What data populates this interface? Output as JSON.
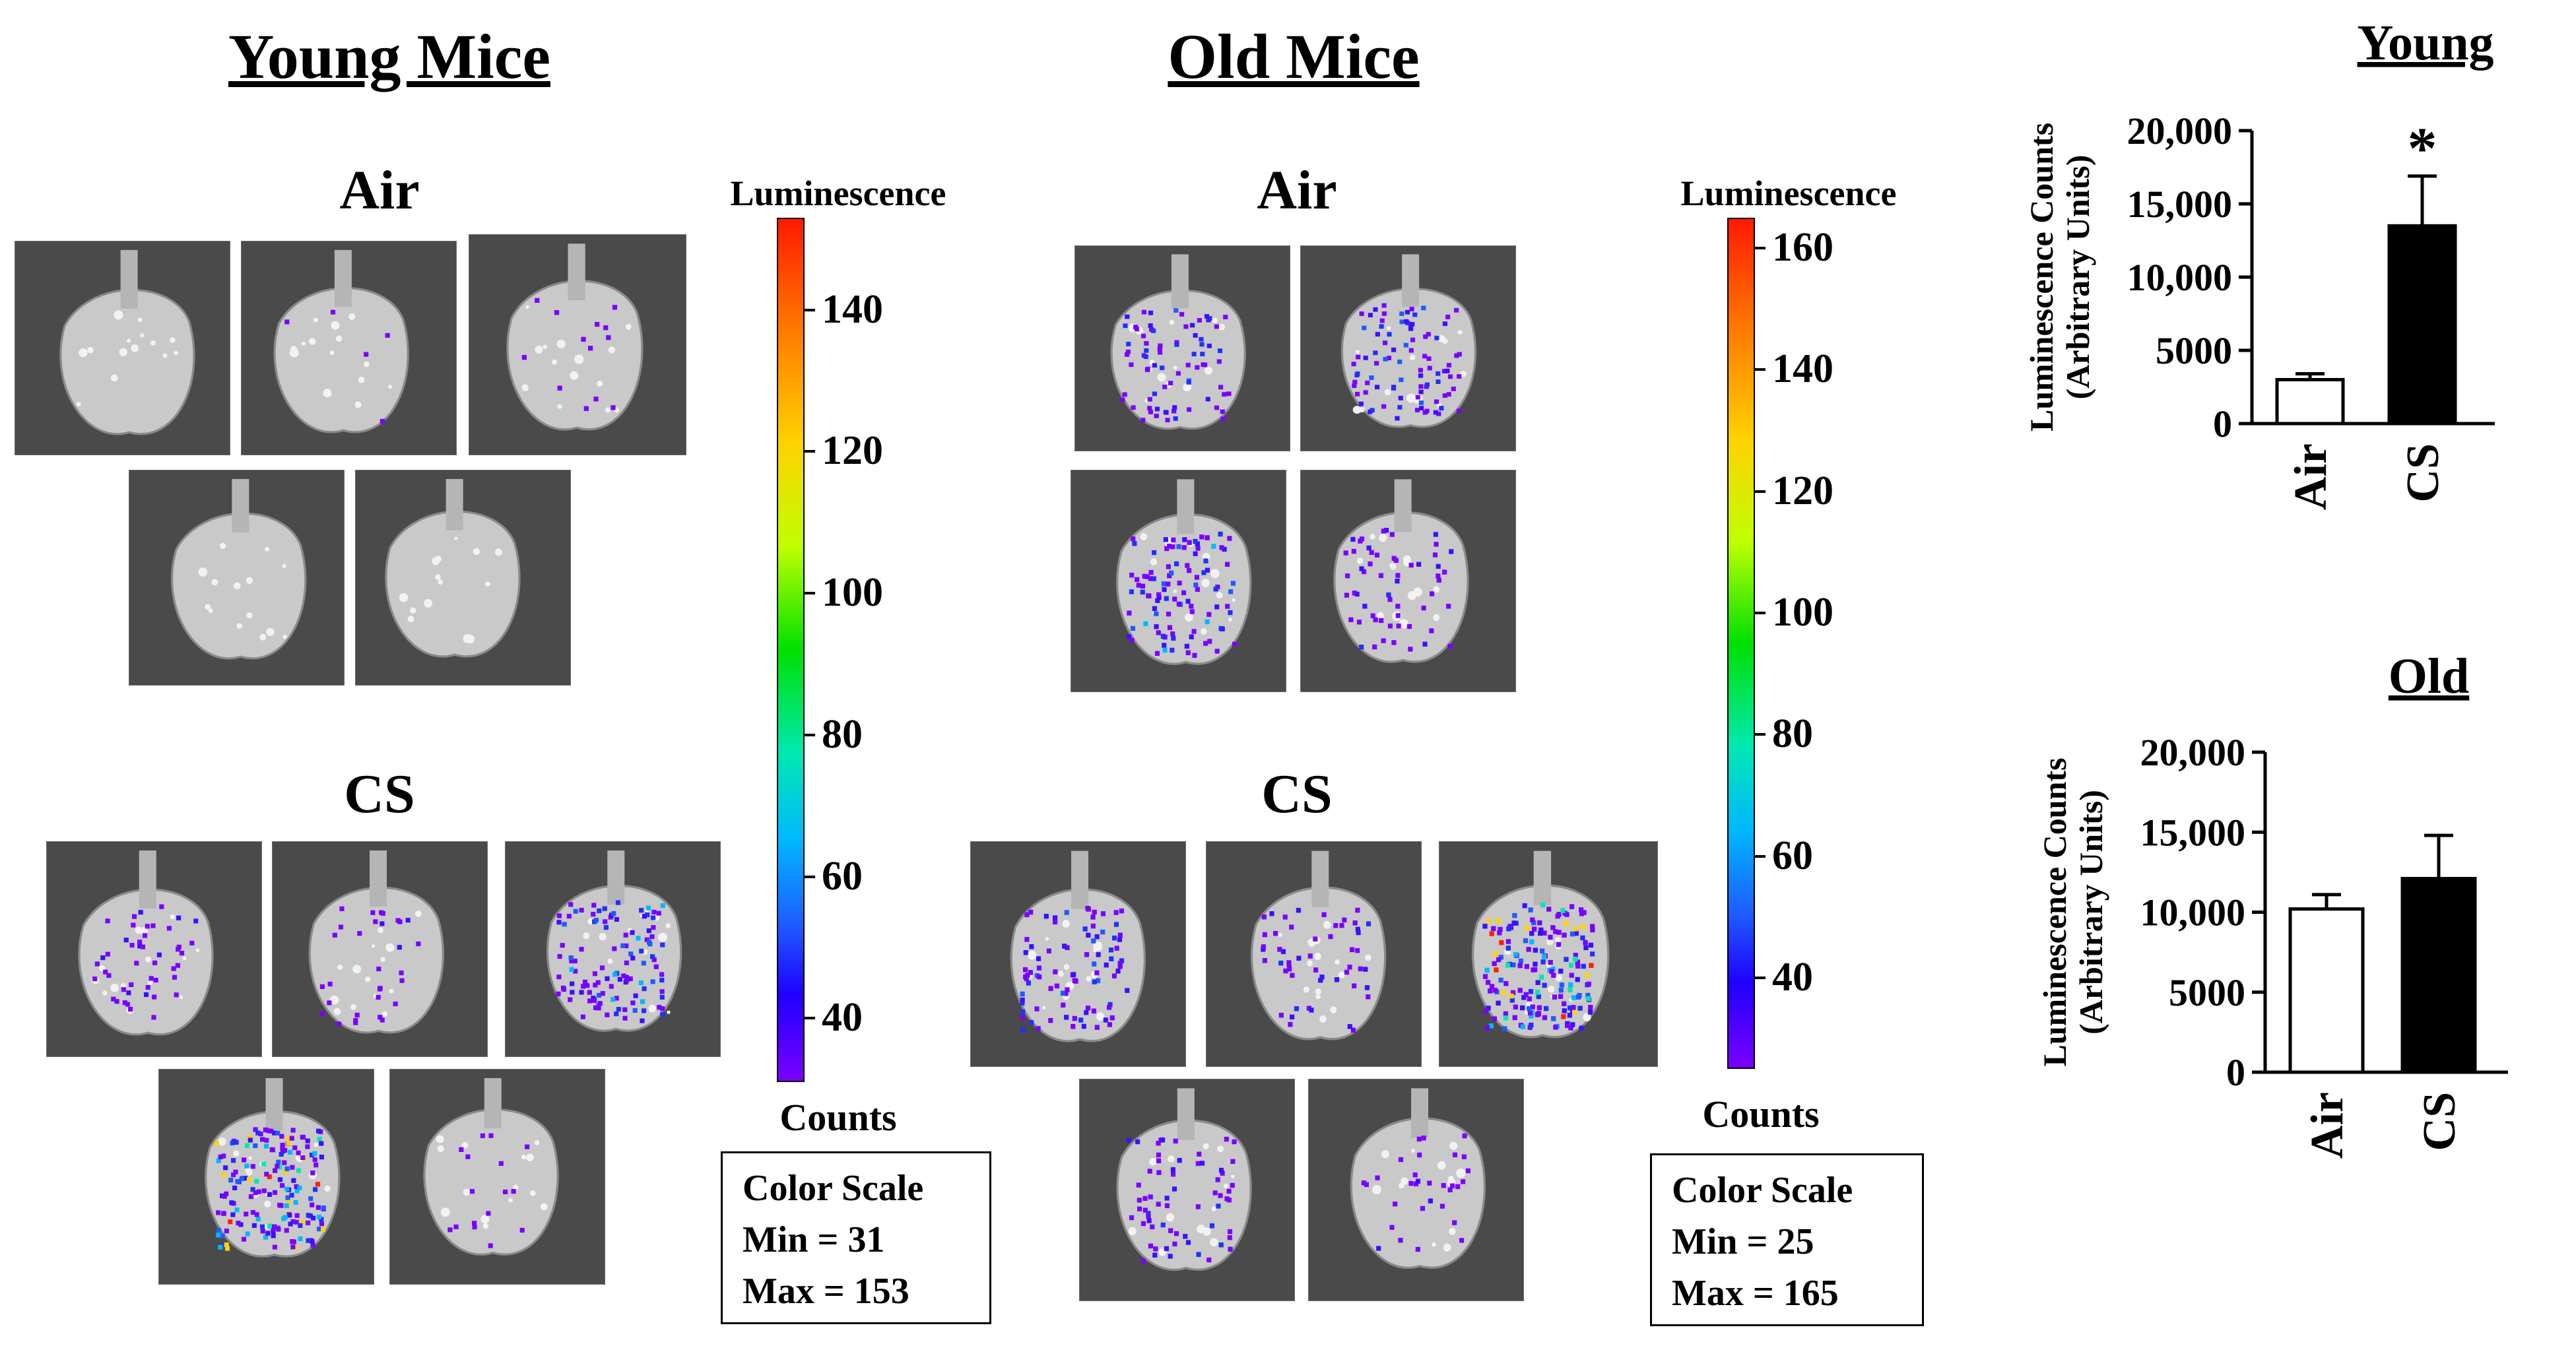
{
  "panels": {
    "young": {
      "title": "Young Mice",
      "air_label": "Air",
      "cs_label": "CS",
      "scale": {
        "title": "Luminescence",
        "unit": "Counts",
        "ticks": [
          "140",
          "120",
          "100",
          "80",
          "60",
          "40"
        ],
        "box_title": "Color Scale",
        "min_text": "Min = 31",
        "max_text": "Max = 153"
      }
    },
    "old": {
      "title": "Old Mice",
      "air_label": "Air",
      "cs_label": "CS",
      "scale": {
        "title": "Luminescence",
        "unit": "Counts",
        "ticks": [
          "160",
          "140",
          "120",
          "100",
          "80",
          "60",
          "40"
        ],
        "box_title": "Color Scale",
        "min_text": "Min = 25",
        "max_text": "Max = 165"
      }
    }
  },
  "colors": {
    "air_bar": "#ffffff",
    "cs_bar": "#000000",
    "tissue_bg": "#4a4a4a"
  },
  "chart_data": [
    {
      "type": "bar",
      "title": "Young",
      "categories": [
        "Air",
        "CS"
      ],
      "values": [
        3000,
        13500
      ],
      "errors": [
        400,
        3400
      ],
      "ylabel": "Luminescence Counts",
      "ylabel2": "(Arbitrary Units)",
      "ylim": [
        0,
        20000
      ],
      "yticks": [
        0,
        5000,
        10000,
        15000,
        20000
      ],
      "ytick_labels": [
        "0",
        "5000",
        "10,000",
        "15,000",
        "20,000"
      ],
      "annotation": "*",
      "annotation_category": "CS"
    },
    {
      "type": "bar",
      "title": "Old",
      "categories": [
        "Air",
        "CS"
      ],
      "values": [
        10200,
        12100
      ],
      "errors": [
        900,
        2700
      ],
      "ylabel": "Luminescence Counts",
      "ylabel2": "(Arbitrary Units)",
      "ylim": [
        0,
        20000
      ],
      "yticks": [
        0,
        5000,
        10000,
        15000,
        20000
      ],
      "ytick_labels": [
        "0",
        "5000",
        "10,000",
        "15,000",
        "20,000"
      ],
      "annotation": "",
      "annotation_category": ""
    }
  ]
}
